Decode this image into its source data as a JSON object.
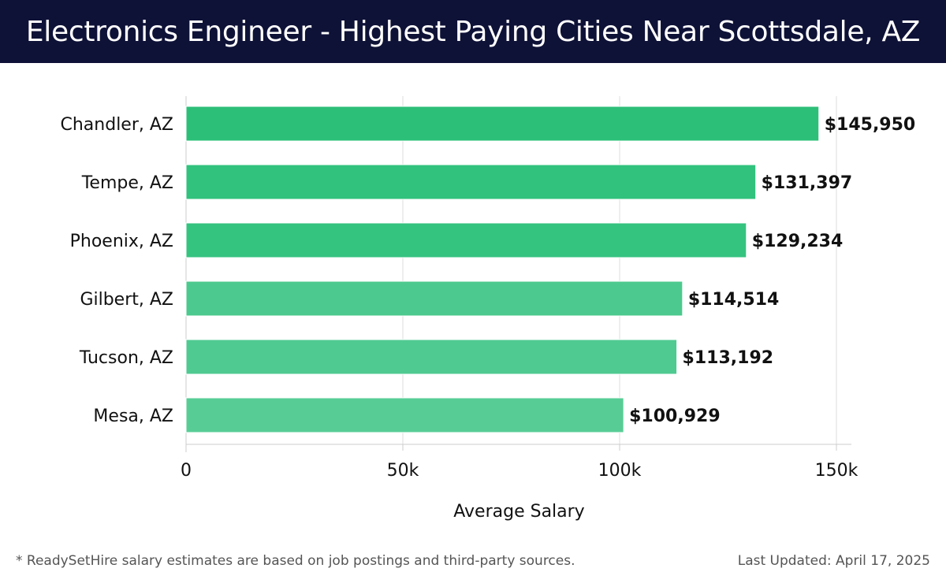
{
  "header": {
    "title": "Electronics Engineer - Highest Paying Cities Near Scottsdale, AZ"
  },
  "chart_data": {
    "type": "bar",
    "orientation": "horizontal",
    "title": "Electronics Engineer - Highest Paying Cities Near Scottsdale, AZ",
    "xlabel": "Average Salary",
    "ylabel": "",
    "xlim": [
      0,
      150000
    ],
    "xticks": [
      0,
      50000,
      100000,
      150000
    ],
    "xtick_labels": [
      "0",
      "50k",
      "100k",
      "150k"
    ],
    "grid": true,
    "categories": [
      "Chandler, AZ",
      "Tempe, AZ",
      "Phoenix, AZ",
      "Gilbert, AZ",
      "Tucson, AZ",
      "Mesa, AZ"
    ],
    "values": [
      145950,
      131397,
      129234,
      114514,
      113192,
      100929
    ],
    "value_labels": [
      "$145,950",
      "$131,397",
      "$129,234",
      "$114,514",
      "$113,192",
      "$100,929"
    ],
    "bar_colors": [
      "#2cbf78",
      "#31c27d",
      "#35c380",
      "#4cc98e",
      "#4fca90",
      "#57cd95"
    ]
  },
  "footer": {
    "note": "* ReadySetHire salary estimates are based on job postings and third-party sources.",
    "updated": "Last Updated: April 17, 2025"
  }
}
